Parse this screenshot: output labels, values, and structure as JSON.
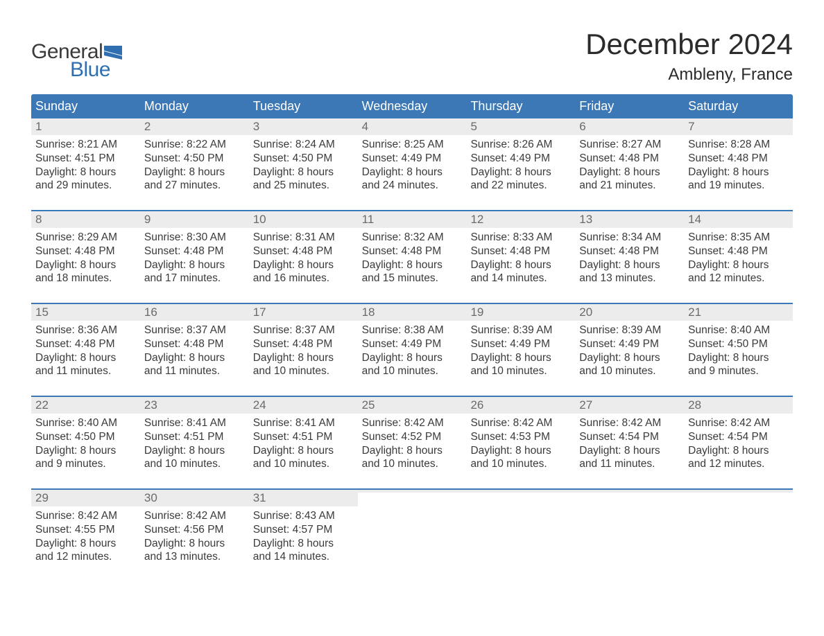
{
  "logo": {
    "text1": "General",
    "text2": "Blue"
  },
  "title": "December 2024",
  "location": "Ambleny, France",
  "colors": {
    "header_bg": "#3b78b5",
    "header_text": "#ffffff",
    "daynum_bg": "#ececec",
    "daynum_text": "#6a6a6a",
    "body_text": "#3a3a3a",
    "week_border": "#3b78b5",
    "logo_blue": "#2f6fb0",
    "logo_gray": "#3a3a3a",
    "page_bg": "#ffffff"
  },
  "fonts": {
    "title_size_pt": 32,
    "location_size_pt": 18,
    "header_size_pt": 14,
    "daynum_size_pt": 13,
    "body_size_pt": 12
  },
  "weekdays": [
    "Sunday",
    "Monday",
    "Tuesday",
    "Wednesday",
    "Thursday",
    "Friday",
    "Saturday"
  ],
  "weeks": [
    [
      {
        "num": "1",
        "sunrise": "Sunrise: 8:21 AM",
        "sunset": "Sunset: 4:51 PM",
        "day1": "Daylight: 8 hours",
        "day2": "and 29 minutes."
      },
      {
        "num": "2",
        "sunrise": "Sunrise: 8:22 AM",
        "sunset": "Sunset: 4:50 PM",
        "day1": "Daylight: 8 hours",
        "day2": "and 27 minutes."
      },
      {
        "num": "3",
        "sunrise": "Sunrise: 8:24 AM",
        "sunset": "Sunset: 4:50 PM",
        "day1": "Daylight: 8 hours",
        "day2": "and 25 minutes."
      },
      {
        "num": "4",
        "sunrise": "Sunrise: 8:25 AM",
        "sunset": "Sunset: 4:49 PM",
        "day1": "Daylight: 8 hours",
        "day2": "and 24 minutes."
      },
      {
        "num": "5",
        "sunrise": "Sunrise: 8:26 AM",
        "sunset": "Sunset: 4:49 PM",
        "day1": "Daylight: 8 hours",
        "day2": "and 22 minutes."
      },
      {
        "num": "6",
        "sunrise": "Sunrise: 8:27 AM",
        "sunset": "Sunset: 4:48 PM",
        "day1": "Daylight: 8 hours",
        "day2": "and 21 minutes."
      },
      {
        "num": "7",
        "sunrise": "Sunrise: 8:28 AM",
        "sunset": "Sunset: 4:48 PM",
        "day1": "Daylight: 8 hours",
        "day2": "and 19 minutes."
      }
    ],
    [
      {
        "num": "8",
        "sunrise": "Sunrise: 8:29 AM",
        "sunset": "Sunset: 4:48 PM",
        "day1": "Daylight: 8 hours",
        "day2": "and 18 minutes."
      },
      {
        "num": "9",
        "sunrise": "Sunrise: 8:30 AM",
        "sunset": "Sunset: 4:48 PM",
        "day1": "Daylight: 8 hours",
        "day2": "and 17 minutes."
      },
      {
        "num": "10",
        "sunrise": "Sunrise: 8:31 AM",
        "sunset": "Sunset: 4:48 PM",
        "day1": "Daylight: 8 hours",
        "day2": "and 16 minutes."
      },
      {
        "num": "11",
        "sunrise": "Sunrise: 8:32 AM",
        "sunset": "Sunset: 4:48 PM",
        "day1": "Daylight: 8 hours",
        "day2": "and 15 minutes."
      },
      {
        "num": "12",
        "sunrise": "Sunrise: 8:33 AM",
        "sunset": "Sunset: 4:48 PM",
        "day1": "Daylight: 8 hours",
        "day2": "and 14 minutes."
      },
      {
        "num": "13",
        "sunrise": "Sunrise: 8:34 AM",
        "sunset": "Sunset: 4:48 PM",
        "day1": "Daylight: 8 hours",
        "day2": "and 13 minutes."
      },
      {
        "num": "14",
        "sunrise": "Sunrise: 8:35 AM",
        "sunset": "Sunset: 4:48 PM",
        "day1": "Daylight: 8 hours",
        "day2": "and 12 minutes."
      }
    ],
    [
      {
        "num": "15",
        "sunrise": "Sunrise: 8:36 AM",
        "sunset": "Sunset: 4:48 PM",
        "day1": "Daylight: 8 hours",
        "day2": "and 11 minutes."
      },
      {
        "num": "16",
        "sunrise": "Sunrise: 8:37 AM",
        "sunset": "Sunset: 4:48 PM",
        "day1": "Daylight: 8 hours",
        "day2": "and 11 minutes."
      },
      {
        "num": "17",
        "sunrise": "Sunrise: 8:37 AM",
        "sunset": "Sunset: 4:48 PM",
        "day1": "Daylight: 8 hours",
        "day2": "and 10 minutes."
      },
      {
        "num": "18",
        "sunrise": "Sunrise: 8:38 AM",
        "sunset": "Sunset: 4:49 PM",
        "day1": "Daylight: 8 hours",
        "day2": "and 10 minutes."
      },
      {
        "num": "19",
        "sunrise": "Sunrise: 8:39 AM",
        "sunset": "Sunset: 4:49 PM",
        "day1": "Daylight: 8 hours",
        "day2": "and 10 minutes."
      },
      {
        "num": "20",
        "sunrise": "Sunrise: 8:39 AM",
        "sunset": "Sunset: 4:49 PM",
        "day1": "Daylight: 8 hours",
        "day2": "and 10 minutes."
      },
      {
        "num": "21",
        "sunrise": "Sunrise: 8:40 AM",
        "sunset": "Sunset: 4:50 PM",
        "day1": "Daylight: 8 hours",
        "day2": "and 9 minutes."
      }
    ],
    [
      {
        "num": "22",
        "sunrise": "Sunrise: 8:40 AM",
        "sunset": "Sunset: 4:50 PM",
        "day1": "Daylight: 8 hours",
        "day2": "and 9 minutes."
      },
      {
        "num": "23",
        "sunrise": "Sunrise: 8:41 AM",
        "sunset": "Sunset: 4:51 PM",
        "day1": "Daylight: 8 hours",
        "day2": "and 10 minutes."
      },
      {
        "num": "24",
        "sunrise": "Sunrise: 8:41 AM",
        "sunset": "Sunset: 4:51 PM",
        "day1": "Daylight: 8 hours",
        "day2": "and 10 minutes."
      },
      {
        "num": "25",
        "sunrise": "Sunrise: 8:42 AM",
        "sunset": "Sunset: 4:52 PM",
        "day1": "Daylight: 8 hours",
        "day2": "and 10 minutes."
      },
      {
        "num": "26",
        "sunrise": "Sunrise: 8:42 AM",
        "sunset": "Sunset: 4:53 PM",
        "day1": "Daylight: 8 hours",
        "day2": "and 10 minutes."
      },
      {
        "num": "27",
        "sunrise": "Sunrise: 8:42 AM",
        "sunset": "Sunset: 4:54 PM",
        "day1": "Daylight: 8 hours",
        "day2": "and 11 minutes."
      },
      {
        "num": "28",
        "sunrise": "Sunrise: 8:42 AM",
        "sunset": "Sunset: 4:54 PM",
        "day1": "Daylight: 8 hours",
        "day2": "and 12 minutes."
      }
    ],
    [
      {
        "num": "29",
        "sunrise": "Sunrise: 8:42 AM",
        "sunset": "Sunset: 4:55 PM",
        "day1": "Daylight: 8 hours",
        "day2": "and 12 minutes."
      },
      {
        "num": "30",
        "sunrise": "Sunrise: 8:42 AM",
        "sunset": "Sunset: 4:56 PM",
        "day1": "Daylight: 8 hours",
        "day2": "and 13 minutes."
      },
      {
        "num": "31",
        "sunrise": "Sunrise: 8:43 AM",
        "sunset": "Sunset: 4:57 PM",
        "day1": "Daylight: 8 hours",
        "day2": "and 14 minutes."
      },
      {
        "empty": true
      },
      {
        "empty": true
      },
      {
        "empty": true
      },
      {
        "empty": true
      }
    ]
  ]
}
